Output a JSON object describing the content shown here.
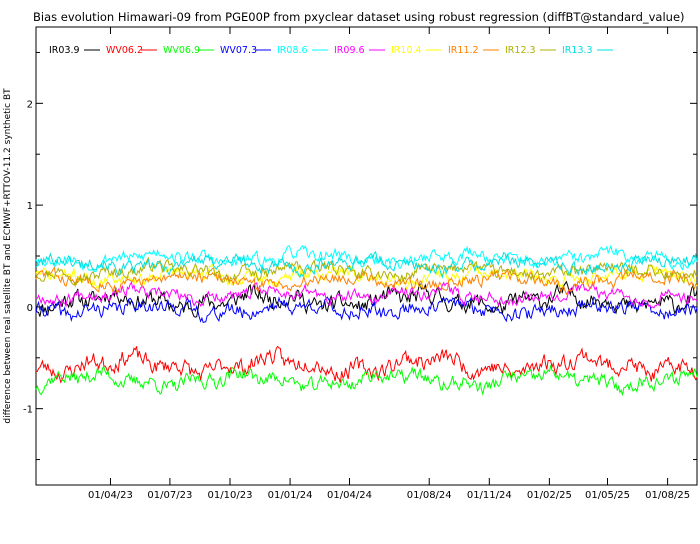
{
  "chart_data": {
    "type": "line",
    "title": "Bias evolution Himawari-09 from PGE00P from pxyclear dataset using robust regression (diffBT@standard_value)",
    "xlabel": "",
    "ylabel": "difference between real satellite BT and ECMWF+RTTOV-11.2 synthetic BT",
    "xlim": [
      "2022-12-08",
      "2025-09-15"
    ],
    "ylim": [
      -1.75,
      2.75
    ],
    "yticks": [
      -1,
      0,
      1,
      2
    ],
    "xticks": [
      "01/04/23",
      "01/07/23",
      "01/10/23",
      "01/01/24",
      "01/04/24",
      "01/08/24",
      "01/11/24",
      "01/02/25",
      "01/05/25",
      "01/08/25"
    ],
    "xtick_dates": [
      "2023-04-01",
      "2023-07-01",
      "2023-10-01",
      "2024-01-01",
      "2024-04-01",
      "2024-08-01",
      "2024-11-01",
      "2025-02-01",
      "2025-05-01",
      "2025-08-01"
    ],
    "grid": false,
    "legend_position": "top-left",
    "series": [
      {
        "name": "IR03.9",
        "color": "#000000",
        "mean": 0.06,
        "noise": 0.07,
        "wave": 0.05,
        "seed": 11
      },
      {
        "name": "WV06.2",
        "color": "#ff0000",
        "mean": -0.57,
        "noise": 0.07,
        "wave": 0.06,
        "seed": 23
      },
      {
        "name": "WV06.9",
        "color": "#00ff00",
        "mean": -0.72,
        "noise": 0.06,
        "wave": 0.05,
        "seed": 37
      },
      {
        "name": "WV07.3",
        "color": "#0000ff",
        "mean": -0.02,
        "noise": 0.06,
        "wave": 0.04,
        "seed": 41
      },
      {
        "name": "IR08.6",
        "color": "#00ffff",
        "mean": 0.48,
        "noise": 0.05,
        "wave": 0.04,
        "seed": 53
      },
      {
        "name": "IR09.6",
        "color": "#ff00ff",
        "mean": 0.12,
        "noise": 0.05,
        "wave": 0.04,
        "seed": 67
      },
      {
        "name": "IR10.4",
        "color": "#ffff00",
        "mean": 0.3,
        "noise": 0.05,
        "wave": 0.04,
        "seed": 71
      },
      {
        "name": "IR11.2",
        "color": "#ff8000",
        "mean": 0.26,
        "noise": 0.05,
        "wave": 0.04,
        "seed": 83
      },
      {
        "name": "IR12.3",
        "color": "#b0b000",
        "mean": 0.35,
        "noise": 0.05,
        "wave": 0.04,
        "seed": 97
      },
      {
        "name": "IR13.3",
        "color": "#00e0e0",
        "mean": 0.42,
        "noise": 0.05,
        "wave": 0.04,
        "seed": 101
      }
    ]
  }
}
